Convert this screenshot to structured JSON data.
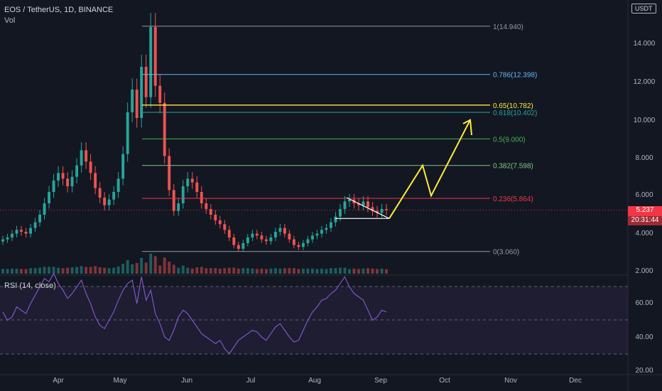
{
  "header": {
    "symbol": "EOS / TetherUS, 1D, BINANCE",
    "vol": "Vol",
    "currency": "USDT"
  },
  "rsi_label": "RSI (14, close)",
  "last_price": {
    "value": "5.237",
    "countdown": "20:31:44",
    "color": "#f23645"
  },
  "colors": {
    "up": "#26a69a",
    "down": "#ef5350",
    "rsi": "#7e57c2",
    "arrow": "#ffeb3b",
    "bg": "#131722"
  },
  "chart_data": [
    {
      "type": "candlestick",
      "x_ticks": [
        "Apr",
        "May",
        "Jun",
        "Jul",
        "Aug",
        "Sep",
        "Oct",
        "Nov",
        "Dec"
      ],
      "y_ticks": [
        "14.000",
        "12.000",
        "10.000",
        "8.000",
        "6.000",
        "4.000",
        "2.000"
      ],
      "ylim": [
        1.8,
        15.5
      ],
      "fib_levels": [
        {
          "label": "1(14.940)",
          "value": 14.94,
          "color": "#9598a1"
        },
        {
          "label": "0.786(12.398)",
          "value": 12.398,
          "color": "#64b5f6"
        },
        {
          "label": "0.65(10.782)",
          "value": 10.782,
          "color": "#ffeb3b"
        },
        {
          "label": "0.618(10.402)",
          "value": 10.402,
          "color": "#26a69a"
        },
        {
          "label": "0.5(9.000)",
          "value": 9.0,
          "color": "#4caf50"
        },
        {
          "label": "0.382(7.598)",
          "value": 7.598,
          "color": "#81c784"
        },
        {
          "label": "0.236(5.864)",
          "value": 5.864,
          "color": "#f23645"
        },
        {
          "label": "0(3.060)",
          "value": 3.06,
          "color": "#9598a1"
        }
      ],
      "closes": [
        3.7,
        3.8,
        4.0,
        4.2,
        4.1,
        4.0,
        4.3,
        4.6,
        5.0,
        5.6,
        6.2,
        6.8,
        7.2,
        6.9,
        6.5,
        7.0,
        7.6,
        8.4,
        7.8,
        7.2,
        6.4,
        5.9,
        5.5,
        5.8,
        6.2,
        6.9,
        8.2,
        10.4,
        11.6,
        10.1,
        12.8,
        11.2,
        14.9,
        11.8,
        10.9,
        8.1,
        6.3,
        5.2,
        5.6,
        6.5,
        6.9,
        6.7,
        6.2,
        5.6,
        5.3,
        5.0,
        4.7,
        4.5,
        4.2,
        3.8,
        3.4,
        3.2,
        3.5,
        3.8,
        4.0,
        3.9,
        3.7,
        3.6,
        3.8,
        4.1,
        4.3,
        4.0,
        3.7,
        3.4,
        3.3,
        3.5,
        3.7,
        3.9,
        4.0,
        4.2,
        4.3,
        4.6,
        4.9,
        5.3,
        5.7,
        5.8,
        5.6,
        5.5,
        5.7,
        5.4,
        5.2,
        5.1,
        5.3,
        5.237
      ],
      "rsi": [
        55,
        50,
        52,
        58,
        56,
        54,
        60,
        65,
        70,
        75,
        73,
        78,
        72,
        68,
        63,
        66,
        70,
        74,
        66,
        60,
        52,
        47,
        45,
        50,
        55,
        62,
        68,
        72,
        74,
        60,
        76,
        62,
        68,
        54,
        48,
        40,
        38,
        44,
        52,
        56,
        54,
        50,
        46,
        42,
        40,
        38,
        36,
        38,
        33,
        30,
        34,
        38,
        40,
        42,
        44,
        43,
        40,
        38,
        42,
        46,
        48,
        44,
        40,
        37,
        38,
        44,
        50,
        55,
        58,
        62,
        63,
        66,
        68,
        72,
        76,
        70,
        66,
        64,
        62,
        56,
        50,
        52,
        56,
        55
      ]
    }
  ],
  "rsi_ticks": [
    "60.00",
    "40.00",
    "20.00"
  ]
}
